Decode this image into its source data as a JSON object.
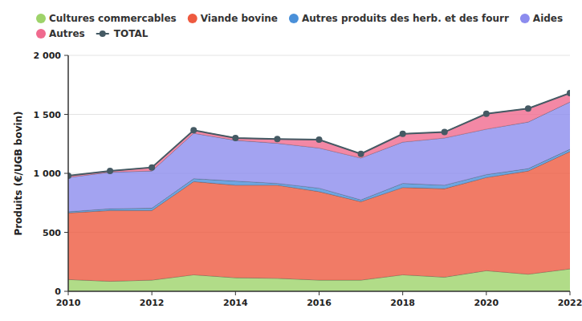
{
  "chart_data": {
    "type": "area",
    "stacked": true,
    "grid": true,
    "legend": "top",
    "y_label": "Produits (€/UGB bovin)",
    "x": [
      2010,
      2011,
      2012,
      2013,
      2014,
      2015,
      2016,
      2017,
      2018,
      2019,
      2020,
      2021,
      2022
    ],
    "xlim": [
      2010,
      2022
    ],
    "xticks": [
      2010,
      2012,
      2014,
      2016,
      2018,
      2020,
      2022
    ],
    "ylim": [
      0,
      2000
    ],
    "yticks": [
      0,
      500,
      {
        "value": 1000,
        "label": "1 000"
      },
      {
        "value": 1500,
        "label": "1 500"
      },
      {
        "value": 2000,
        "label": "2 000"
      }
    ],
    "series": [
      {
        "name": "Cultures commercables",
        "color": "#9ed36a",
        "type": "area",
        "values": [
          100,
          85,
          95,
          140,
          115,
          110,
          95,
          95,
          140,
          120,
          175,
          145,
          190
        ]
      },
      {
        "name": "Viande bovine",
        "color": "#ee5a40",
        "type": "area",
        "values": [
          565,
          600,
          590,
          790,
          785,
          790,
          750,
          665,
          740,
          750,
          790,
          875,
          995
        ]
      },
      {
        "name": "Autres produits des herb. et des fourr",
        "color": "#4a90d9",
        "type": "area",
        "values": [
          10,
          15,
          20,
          25,
          35,
          15,
          30,
          15,
          35,
          30,
          25,
          20,
          20
        ]
      },
      {
        "name": "Aides",
        "color": "#8c8cee",
        "type": "area",
        "values": [
          290,
          310,
          315,
          385,
          345,
          340,
          340,
          355,
          350,
          400,
          385,
          395,
          400
        ]
      },
      {
        "name": "Autres",
        "color": "#f06a8e",
        "type": "area",
        "values": [
          15,
          10,
          30,
          25,
          20,
          35,
          70,
          35,
          70,
          50,
          130,
          115,
          75
        ]
      },
      {
        "name": "TOTAL",
        "color": "#455a64",
        "type": "line",
        "marker": "circle",
        "values": [
          980,
          1020,
          1050,
          1365,
          1300,
          1290,
          1285,
          1165,
          1335,
          1350,
          1505,
          1550,
          1680
        ]
      }
    ]
  }
}
